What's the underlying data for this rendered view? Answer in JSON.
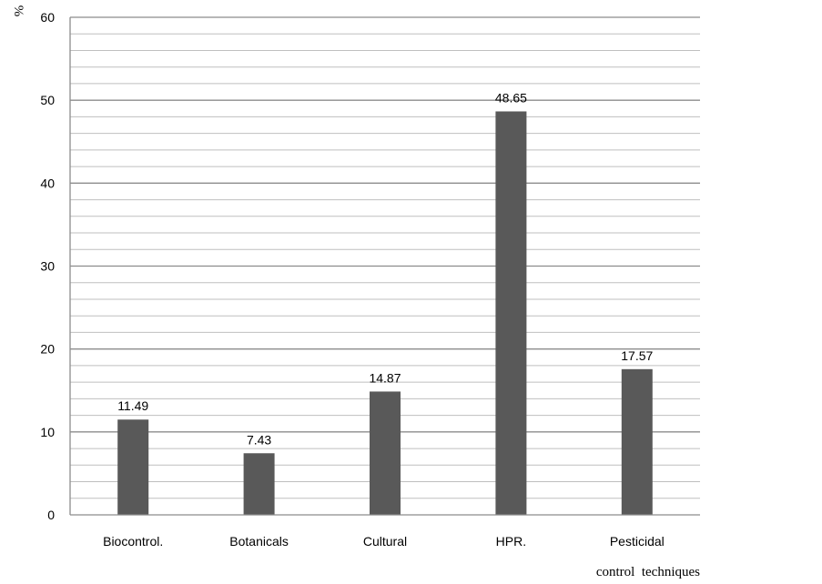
{
  "chart_data": {
    "type": "bar",
    "categories": [
      "Biocontrol.",
      "Botanicals",
      "Cultural",
      "HPR.",
      "Pesticidal"
    ],
    "values": [
      11.49,
      7.43,
      14.87,
      48.65,
      17.57
    ],
    "data_labels": [
      "11.49",
      "7.43",
      "14.87",
      "48.65",
      "17.57"
    ],
    "xlabel": "control  techniques",
    "ylabel": "%",
    "ylim": [
      0,
      60
    ],
    "yticks": [
      0,
      10,
      20,
      30,
      40,
      50,
      60
    ],
    "minor_gridline_step": 2,
    "grid": true,
    "legend": "none",
    "bar_color": "#595959",
    "major_grid_color": "#8c8c8c",
    "minor_grid_color": "#bfbfbf"
  }
}
